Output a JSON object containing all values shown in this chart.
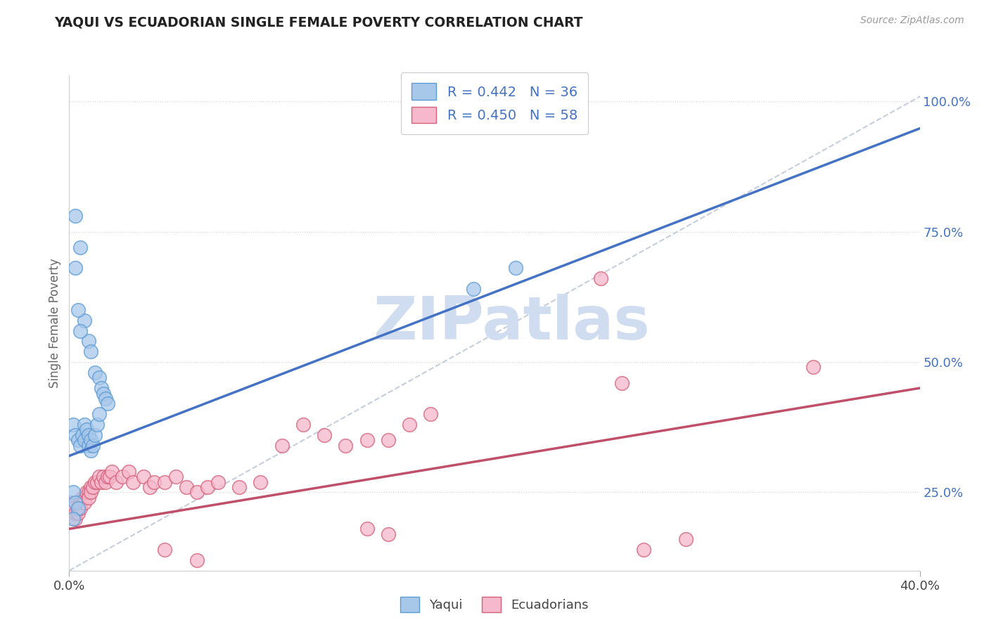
{
  "title": "YAQUI VS ECUADORIAN SINGLE FEMALE POVERTY CORRELATION CHART",
  "source": "Source: ZipAtlas.com",
  "ylabel": "Single Female Poverty",
  "xlim": [
    0.0,
    0.4
  ],
  "ylim": [
    0.1,
    1.05
  ],
  "plot_ylim": [
    0.1,
    1.05
  ],
  "background_color": "#ffffff",
  "grid_color": "#d8d8d8",
  "yaqui_color": "#a8c8ea",
  "ecuadorian_color": "#f5b8cc",
  "yaqui_edge_color": "#5b9bd5",
  "ecuadorian_edge_color": "#d4607a",
  "yaqui_line_color": "#4472c4",
  "ecuadorian_line_color": "#c0506a",
  "diagonal_color": "#c0c8d8",
  "watermark_color": "#d0ddf0",
  "watermark": "ZIPatlas",
  "legend_label1": "R = 0.442   N = 36",
  "legend_label2": "R = 0.450   N = 58",
  "legend_xlabel1": "Yaqui",
  "legend_xlabel2": "Ecuadorians",
  "yaqui_scatter": [
    [
      0.003,
      0.78
    ],
    [
      0.005,
      0.72
    ],
    [
      0.007,
      0.58
    ],
    [
      0.009,
      0.54
    ],
    [
      0.01,
      0.52
    ],
    [
      0.012,
      0.48
    ],
    [
      0.014,
      0.47
    ],
    [
      0.015,
      0.45
    ],
    [
      0.016,
      0.44
    ],
    [
      0.017,
      0.43
    ],
    [
      0.018,
      0.42
    ],
    [
      0.003,
      0.68
    ],
    [
      0.004,
      0.6
    ],
    [
      0.005,
      0.56
    ],
    [
      0.002,
      0.38
    ],
    [
      0.003,
      0.36
    ],
    [
      0.004,
      0.35
    ],
    [
      0.005,
      0.34
    ],
    [
      0.006,
      0.36
    ],
    [
      0.007,
      0.38
    ],
    [
      0.007,
      0.35
    ],
    [
      0.008,
      0.37
    ],
    [
      0.009,
      0.36
    ],
    [
      0.009,
      0.34
    ],
    [
      0.01,
      0.35
    ],
    [
      0.01,
      0.33
    ],
    [
      0.011,
      0.34
    ],
    [
      0.012,
      0.36
    ],
    [
      0.013,
      0.38
    ],
    [
      0.014,
      0.4
    ],
    [
      0.002,
      0.25
    ],
    [
      0.003,
      0.23
    ],
    [
      0.004,
      0.22
    ],
    [
      0.19,
      0.64
    ],
    [
      0.21,
      0.68
    ],
    [
      0.002,
      0.2
    ]
  ],
  "ecuadorian_scatter": [
    [
      0.001,
      0.23
    ],
    [
      0.002,
      0.22
    ],
    [
      0.003,
      0.2
    ],
    [
      0.003,
      0.21
    ],
    [
      0.004,
      0.22
    ],
    [
      0.004,
      0.21
    ],
    [
      0.005,
      0.23
    ],
    [
      0.005,
      0.22
    ],
    [
      0.006,
      0.24
    ],
    [
      0.007,
      0.24
    ],
    [
      0.007,
      0.23
    ],
    [
      0.008,
      0.25
    ],
    [
      0.009,
      0.25
    ],
    [
      0.009,
      0.24
    ],
    [
      0.01,
      0.26
    ],
    [
      0.01,
      0.25
    ],
    [
      0.011,
      0.26
    ],
    [
      0.012,
      0.27
    ],
    [
      0.013,
      0.27
    ],
    [
      0.014,
      0.28
    ],
    [
      0.015,
      0.27
    ],
    [
      0.016,
      0.28
    ],
    [
      0.017,
      0.27
    ],
    [
      0.018,
      0.28
    ],
    [
      0.019,
      0.28
    ],
    [
      0.02,
      0.29
    ],
    [
      0.022,
      0.27
    ],
    [
      0.025,
      0.28
    ],
    [
      0.028,
      0.29
    ],
    [
      0.03,
      0.27
    ],
    [
      0.035,
      0.28
    ],
    [
      0.038,
      0.26
    ],
    [
      0.04,
      0.27
    ],
    [
      0.045,
      0.27
    ],
    [
      0.05,
      0.28
    ],
    [
      0.055,
      0.26
    ],
    [
      0.06,
      0.25
    ],
    [
      0.065,
      0.26
    ],
    [
      0.07,
      0.27
    ],
    [
      0.08,
      0.26
    ],
    [
      0.09,
      0.27
    ],
    [
      0.1,
      0.34
    ],
    [
      0.11,
      0.38
    ],
    [
      0.12,
      0.36
    ],
    [
      0.13,
      0.34
    ],
    [
      0.14,
      0.35
    ],
    [
      0.15,
      0.35
    ],
    [
      0.16,
      0.38
    ],
    [
      0.17,
      0.4
    ],
    [
      0.25,
      0.66
    ],
    [
      0.26,
      0.46
    ],
    [
      0.35,
      0.49
    ],
    [
      0.045,
      0.14
    ],
    [
      0.06,
      0.12
    ],
    [
      0.14,
      0.18
    ],
    [
      0.15,
      0.17
    ],
    [
      0.27,
      0.14
    ],
    [
      0.29,
      0.16
    ]
  ]
}
